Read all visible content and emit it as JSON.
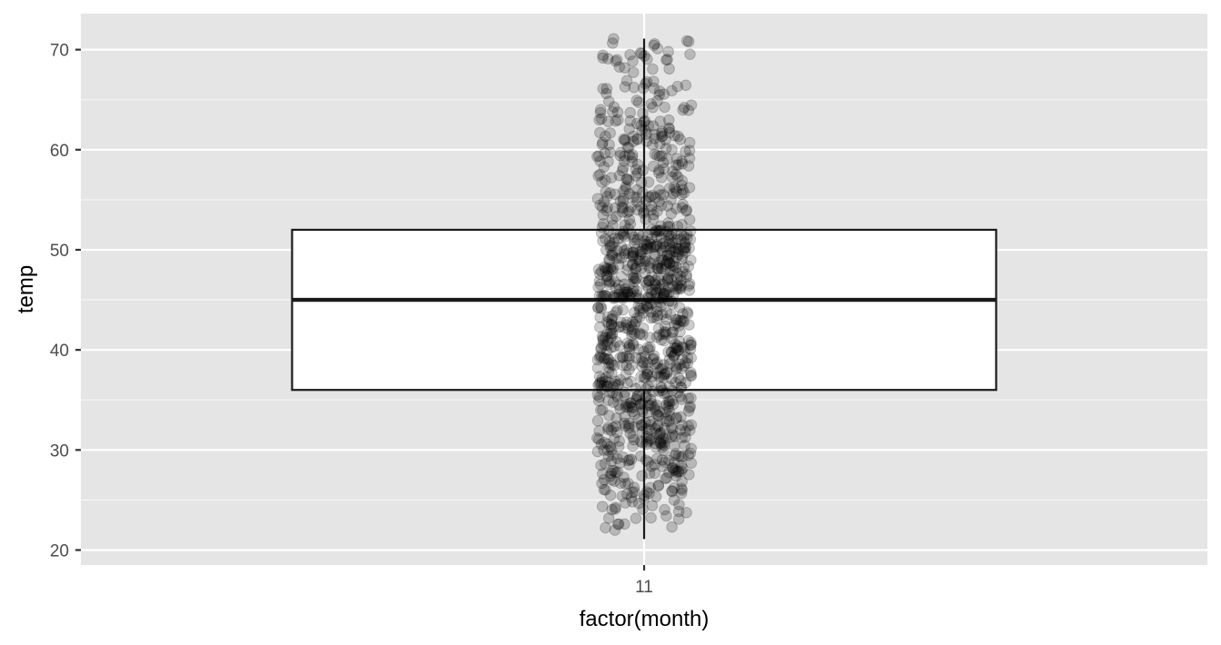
{
  "chart_data": {
    "type": "boxplot",
    "xlabel": "factor(month)",
    "ylabel": "temp",
    "categories": [
      "11"
    ],
    "ylim": [
      18.5,
      73.6
    ],
    "y_ticks": [
      20,
      30,
      40,
      50,
      60,
      70
    ],
    "y_minor_ticks": [
      25,
      35,
      45,
      55,
      65
    ],
    "grid": true,
    "box": {
      "category": "11",
      "lower_whisker": 21.1,
      "q1": 36.0,
      "median": 45.0,
      "q3": 52.0,
      "upper_whisker": 71.1
    },
    "jitter_points": {
      "category": "11",
      "approximate_count": 1080,
      "min": 21.0,
      "max": 71.2,
      "alpha": 0.2,
      "color": "#000000"
    },
    "colors": {
      "panel_background": "#e5e5e5",
      "grid_major": "#ffffff",
      "box_fill": "#ffffff",
      "box_stroke": "#1a1a1a"
    }
  }
}
